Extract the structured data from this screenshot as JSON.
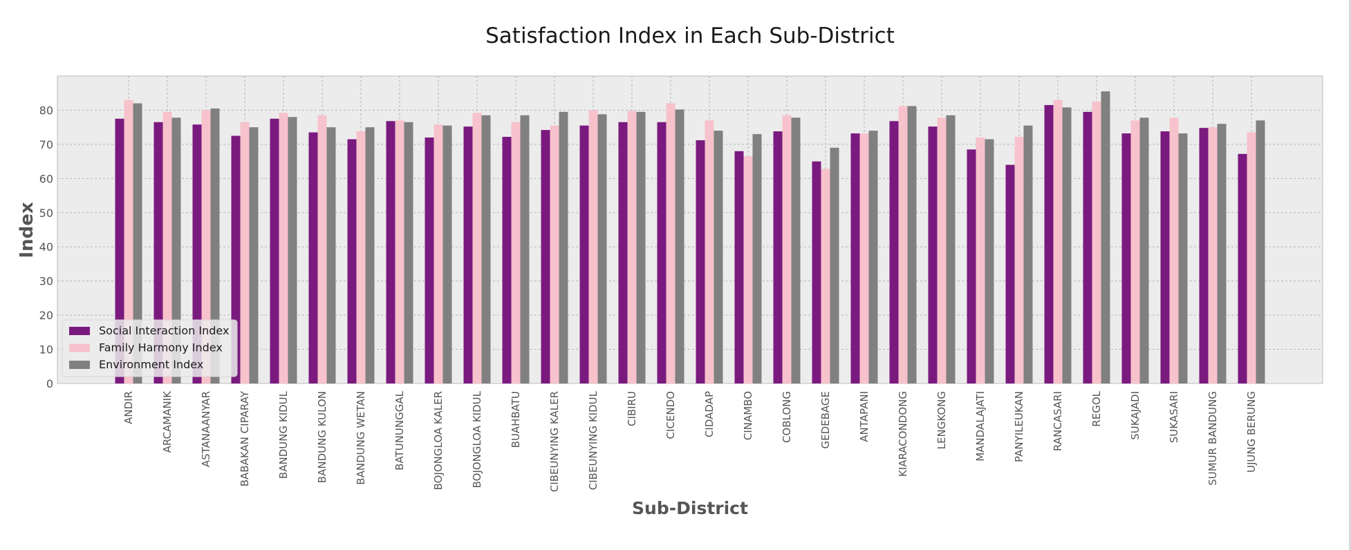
{
  "chart_data": {
    "type": "bar",
    "title": "Satisfaction Index in Each Sub-District",
    "xlabel": "Sub-District",
    "ylabel": "Index",
    "ylim": [
      0,
      90
    ],
    "yticks": [
      0,
      10,
      20,
      30,
      40,
      50,
      60,
      70,
      80
    ],
    "grid": true,
    "legend_position": "lower-left",
    "categories": [
      "ANDIR",
      "ARCAMANIK",
      "ASTANAANYAR",
      "BABAKAN CIPARAY",
      "BANDUNG KIDUL",
      "BANDUNG KULON",
      "BANDUNG WETAN",
      "BATUNUNGGAL",
      "BOJONGLOA KALER",
      "BOJONGLOA KIDUL",
      "BUAHBATU",
      "CIBEUNYING KALER",
      "CIBEUNYING KIDUL",
      "CIBIRU",
      "CICENDO",
      "CIDADAP",
      "CINAMBO",
      "COBLONG",
      "GEDEBAGE",
      "ANTAPANI",
      "KIARACONDONG",
      "LENGKONG",
      "MANDALAJATI",
      "PANYILEUKAN",
      "RANCASARI",
      "REGOL",
      "SUKAJADI",
      "SUKASARI",
      "SUMUR BANDUNG",
      "UJUNG BERUNG"
    ],
    "series": [
      {
        "name": "Social Interaction Index",
        "color": "#7a1a7f",
        "values": [
          77.5,
          76.5,
          75.8,
          72.5,
          77.5,
          73.5,
          71.5,
          76.8,
          72.0,
          75.2,
          72.2,
          74.2,
          75.5,
          76.5,
          76.5,
          71.2,
          68.0,
          73.8,
          65.0,
          73.2,
          76.8,
          75.2,
          68.5,
          64.0,
          81.5,
          79.5,
          73.2,
          73.8,
          74.8,
          67.2
        ]
      },
      {
        "name": "Family Harmony Index",
        "color": "#f7c2cb",
        "values": [
          83.0,
          79.5,
          80.0,
          76.5,
          79.2,
          78.5,
          73.8,
          77.0,
          75.8,
          79.2,
          76.5,
          75.5,
          80.0,
          79.8,
          82.0,
          77.0,
          66.5,
          78.5,
          62.8,
          73.2,
          81.2,
          77.8,
          72.0,
          72.2,
          83.0,
          82.5,
          77.0,
          77.8,
          75.0,
          73.5
        ]
      },
      {
        "name": "Environment Index",
        "color": "#808080",
        "values": [
          82.0,
          77.8,
          80.5,
          75.0,
          78.0,
          75.0,
          75.0,
          76.5,
          75.5,
          78.5,
          78.5,
          79.5,
          78.8,
          79.5,
          80.2,
          74.0,
          73.0,
          77.8,
          69.0,
          74.0,
          81.2,
          78.5,
          71.5,
          75.5,
          80.8,
          85.5,
          77.8,
          73.2,
          76.0,
          77.0
        ]
      }
    ]
  }
}
